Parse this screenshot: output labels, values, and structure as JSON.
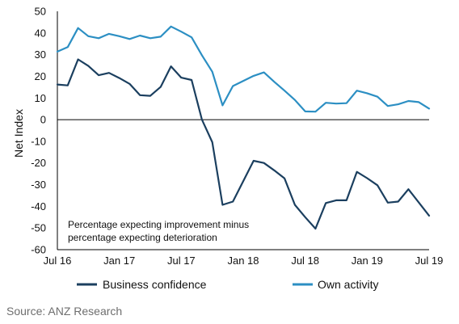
{
  "chart_data": {
    "type": "line",
    "ylabel": "Net Index",
    "ylim": [
      -60,
      50
    ],
    "yticks": [
      50,
      40,
      30,
      20,
      10,
      0,
      -10,
      -20,
      -30,
      -40,
      -50,
      -60
    ],
    "xlim": [
      "2016-07",
      "2019-07"
    ],
    "xticks": [
      {
        "value": "2016-07",
        "label": "Jul 16"
      },
      {
        "value": "2017-01",
        "label": "Jan 17"
      },
      {
        "value": "2017-07",
        "label": "Jul 17"
      },
      {
        "value": "2018-01",
        "label": "Jan 18"
      },
      {
        "value": "2018-07",
        "label": "Jul 18"
      },
      {
        "value": "2019-01",
        "label": "Jan 19"
      },
      {
        "value": "2019-07",
        "label": "Jul 19"
      }
    ],
    "annotation": [
      "Percentage expecting improvement minus",
      "percentage expecting deterioration"
    ],
    "legend_position": "bottom",
    "grid": false,
    "x": [
      "2016-07",
      "2016-08",
      "2016-09",
      "2016-10",
      "2016-11",
      "2016-12",
      "2017-01",
      "2017-02",
      "2017-03",
      "2017-04",
      "2017-05",
      "2017-06",
      "2017-07",
      "2017-08",
      "2017-09",
      "2017-10",
      "2017-11",
      "2017-12",
      "2018-01",
      "2018-02",
      "2018-03",
      "2018-04",
      "2018-05",
      "2018-06",
      "2018-07",
      "2018-08",
      "2018-09",
      "2018-10",
      "2018-11",
      "2018-12",
      "2019-01",
      "2019-02",
      "2019-03",
      "2019-04",
      "2019-05",
      "2019-06",
      "2019-07"
    ],
    "series": [
      {
        "name": "Business confidence",
        "color": "#1b3f5f",
        "values": [
          16.2,
          15.8,
          27.8,
          24.8,
          20.5,
          21.6,
          19.2,
          16.5,
          11.3,
          11.0,
          15.1,
          24.6,
          19.4,
          18.3,
          0.0,
          -10.4,
          -39.3,
          -37.8,
          null,
          -19.0,
          -20.0,
          -23.4,
          -27.1,
          -39.3,
          -45.0,
          -50.3,
          -38.5,
          -37.2,
          -37.2,
          -24.1,
          -27.0,
          -30.3,
          -38.3,
          -37.8,
          -32.1,
          null,
          -44.3
        ]
      },
      {
        "name": "Own activity",
        "color": "#2c8fc3",
        "values": [
          31.4,
          33.5,
          42.3,
          38.5,
          37.6,
          39.6,
          38.5,
          37.2,
          38.8,
          37.6,
          38.3,
          43.0,
          40.6,
          38.0,
          29.7,
          22.1,
          6.6,
          15.5,
          null,
          20.2,
          21.8,
          17.5,
          13.4,
          9.1,
          3.8,
          3.7,
          7.8,
          7.4,
          7.6,
          13.4,
          12.2,
          10.6,
          6.3,
          7.1,
          8.6,
          8.1,
          5.1
        ]
      }
    ]
  },
  "source": "Source: ANZ Research"
}
